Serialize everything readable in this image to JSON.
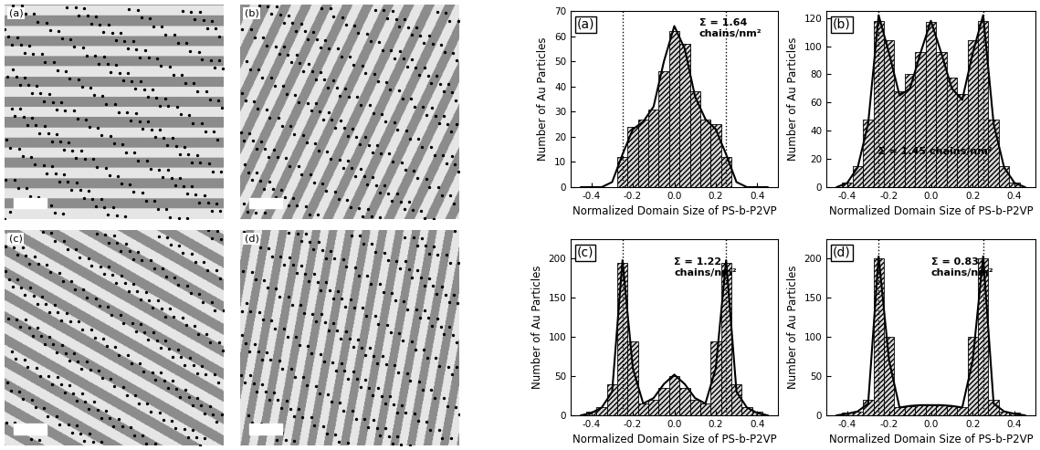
{
  "micrographs": {
    "panel_labels": [
      "(a)",
      "(b)",
      "(c)",
      "(d)"
    ]
  },
  "chart_data": [
    {
      "type": "histogram",
      "panel_label": "(a)",
      "annotation": "Σ = 1.64\nchains/nm²",
      "x_label": "Normalized Domain Size of PS-b-P2VP",
      "y_label": "Number of Au Particles",
      "bins": [
        -0.475,
        -0.425,
        -0.375,
        -0.325,
        -0.275,
        -0.225,
        -0.175,
        -0.125,
        -0.075,
        -0.025,
        0.025,
        0.075,
        0.125,
        0.175,
        0.225,
        0.275,
        0.325,
        0.375,
        0.425,
        0.475
      ],
      "counts": [
        0,
        0,
        0,
        0,
        12,
        24,
        27,
        31,
        46,
        62,
        57,
        38,
        27,
        25,
        12,
        0,
        0,
        0,
        0
      ],
      "curve_x": [
        -0.45,
        -0.4,
        -0.35,
        -0.3,
        -0.25,
        -0.2,
        -0.15,
        -0.1,
        -0.05,
        0.0,
        0.05,
        0.1,
        0.15,
        0.2,
        0.25,
        0.3,
        0.35,
        0.4,
        0.45
      ],
      "curve_values": [
        0,
        0,
        0,
        2,
        13,
        23,
        26,
        32,
        50,
        64,
        55,
        36,
        27,
        23,
        13,
        2,
        0,
        0,
        0
      ],
      "reference_lines": [
        -0.25,
        0.25
      ],
      "color": "#d9d9d9",
      "xlim": [
        -0.5,
        0.5
      ],
      "xticks": [
        -0.4,
        -0.2,
        0.0,
        0.2,
        0.4
      ],
      "ylim": [
        0,
        70
      ],
      "yticks": [
        0,
        10,
        20,
        30,
        40,
        50,
        60,
        70
      ]
    },
    {
      "type": "histogram",
      "panel_label": "(b)",
      "annotation": "Σ = 1.45 chains/nm²",
      "x_label": "Normalized Domain Size of PS-b-P2VP",
      "y_label": "Number of Au Particles",
      "bins": [
        -0.475,
        -0.425,
        -0.375,
        -0.325,
        -0.275,
        -0.225,
        -0.175,
        -0.125,
        -0.075,
        -0.025,
        0.025,
        0.075,
        0.125,
        0.175,
        0.225,
        0.275,
        0.325,
        0.375,
        0.425,
        0.475
      ],
      "counts": [
        0,
        3,
        15,
        48,
        118,
        104,
        68,
        80,
        96,
        117,
        96,
        78,
        66,
        104,
        118,
        48,
        15,
        3,
        0
      ],
      "curve_x": [
        -0.45,
        -0.4,
        -0.35,
        -0.3,
        -0.25,
        -0.2,
        -0.15,
        -0.1,
        -0.05,
        0.0,
        0.05,
        0.1,
        0.15,
        0.2,
        0.25,
        0.3,
        0.35,
        0.4,
        0.45
      ],
      "curve_values": [
        0,
        3,
        14,
        45,
        122,
        95,
        65,
        70,
        95,
        118,
        95,
        70,
        62,
        95,
        122,
        45,
        14,
        3,
        0
      ],
      "reference_lines": [
        -0.25,
        0.25
      ],
      "color": "#d9d9d9",
      "xlim": [
        -0.5,
        0.5
      ],
      "xticks": [
        -0.4,
        -0.2,
        0.0,
        0.2,
        0.4
      ],
      "ylim": [
        0,
        125
      ],
      "yticks": [
        0,
        20,
        40,
        60,
        80,
        100,
        120
      ]
    },
    {
      "type": "histogram",
      "panel_label": "(c)",
      "annotation": "Σ = 1.22\nchains/nm²",
      "x_label": "Normalized Domain Size of PS-b-P2VP",
      "y_label": "Number of Au Particles",
      "bins": [
        -0.475,
        -0.425,
        -0.375,
        -0.325,
        -0.275,
        -0.225,
        -0.175,
        -0.125,
        -0.075,
        -0.025,
        0.025,
        0.075,
        0.125,
        0.175,
        0.225,
        0.275,
        0.325,
        0.375,
        0.425,
        0.475
      ],
      "counts": [
        0,
        5,
        10,
        40,
        195,
        95,
        15,
        20,
        35,
        50,
        35,
        20,
        15,
        95,
        195,
        40,
        10,
        5,
        0
      ],
      "curve_x": [
        -0.45,
        -0.4,
        -0.35,
        -0.3,
        -0.25,
        -0.2,
        -0.15,
        -0.1,
        -0.05,
        0.0,
        0.05,
        0.1,
        0.15,
        0.2,
        0.25,
        0.3,
        0.35,
        0.4,
        0.45
      ],
      "curve_values": [
        0,
        3,
        10,
        30,
        198,
        60,
        15,
        22,
        40,
        52,
        40,
        22,
        15,
        60,
        198,
        30,
        10,
        3,
        0
      ],
      "reference_lines": [
        -0.25,
        0.25
      ],
      "color": "#d9d9d9",
      "xlim": [
        -0.5,
        0.5
      ],
      "xticks": [
        -0.4,
        -0.2,
        0.0,
        0.2,
        0.4
      ],
      "ylim": [
        0,
        225
      ],
      "yticks": [
        0,
        50,
        100,
        150,
        200
      ]
    },
    {
      "type": "histogram",
      "panel_label": "(d)",
      "annotation": "Σ = 0.83\nchains/nm²",
      "x_label": "Normalized Domain Size of PS-b-P2VP",
      "y_label": "Number of Au Particles",
      "bins": [
        -0.475,
        -0.425,
        -0.375,
        -0.325,
        -0.275,
        -0.225,
        -0.175,
        -0.125,
        -0.075,
        -0.025,
        0.025,
        0.075,
        0.125,
        0.175,
        0.225,
        0.275,
        0.325,
        0.375,
        0.425,
        0.475
      ],
      "counts": [
        0,
        3,
        5,
        20,
        200,
        100,
        10,
        12,
        13,
        13,
        13,
        12,
        10,
        100,
        200,
        20,
        5,
        3,
        0
      ],
      "curve_x": [
        -0.45,
        -0.4,
        -0.35,
        -0.3,
        -0.25,
        -0.2,
        -0.15,
        -0.1,
        -0.05,
        0.0,
        0.05,
        0.1,
        0.15,
        0.2,
        0.25,
        0.3,
        0.35,
        0.4,
        0.45
      ],
      "curve_values": [
        0,
        2,
        5,
        15,
        203,
        70,
        10,
        12,
        13,
        13,
        13,
        12,
        10,
        70,
        203,
        15,
        5,
        2,
        0
      ],
      "reference_lines": [
        -0.25,
        0.25
      ],
      "color": "#d9d9d9",
      "xlim": [
        -0.5,
        0.5
      ],
      "xticks": [
        -0.4,
        -0.2,
        0.0,
        0.2,
        0.4
      ],
      "ylim": [
        0,
        225
      ],
      "yticks": [
        0,
        50,
        100,
        150,
        200
      ]
    }
  ]
}
